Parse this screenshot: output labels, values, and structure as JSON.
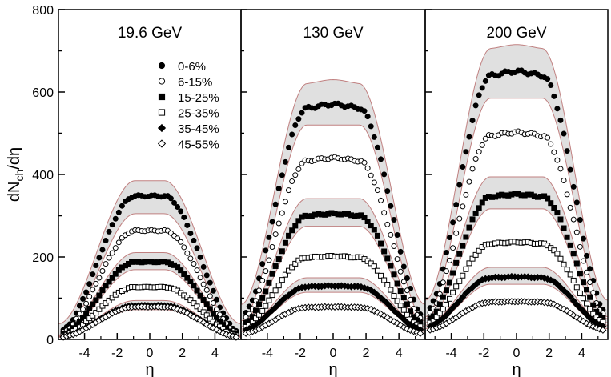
{
  "chart_data": [
    {
      "type": "scatter",
      "title": "19.6 GeV",
      "xlabel": "η",
      "ylabel": "dN_ch/dη",
      "xlim": [
        -5.6,
        5.6
      ],
      "ylim": [
        0,
        800
      ],
      "xticks": [
        -4,
        -2,
        0,
        2,
        4
      ],
      "yticks": [
        0,
        200,
        400,
        600,
        800
      ],
      "plateau": [
        348,
        264,
        188,
        127,
        82,
        79
      ],
      "edge": [
        18,
        14,
        10,
        8,
        6,
        5
      ],
      "band": {
        "upper": 385,
        "lower": 305
      },
      "legend": {
        "position": "top-right",
        "entries": [
          "0-6%",
          "6-15%",
          "15-25%",
          "25-35%",
          "35-45%",
          "45-55%"
        ]
      }
    },
    {
      "type": "scatter",
      "title": "130 GeV",
      "xlabel": "η",
      "xlim": [
        -5.6,
        5.6
      ],
      "ylim": [
        0,
        800
      ],
      "xticks": [
        -4,
        -2,
        0,
        2,
        4
      ],
      "plateau": [
        570,
        440,
        305,
        202,
        130,
        79
      ],
      "edge": [
        55,
        45,
        35,
        28,
        22,
        14
      ],
      "band": {
        "upper": 630,
        "lower": 520
      }
    },
    {
      "type": "scatter",
      "title": "200 GeV",
      "xlabel": "η",
      "xlim": [
        -5.6,
        5.6
      ],
      "ylim": [
        0,
        800
      ],
      "xticks": [
        -4,
        -2,
        0,
        2,
        4
      ],
      "plateau": [
        650,
        502,
        352,
        236,
        152,
        92
      ],
      "edge": [
        65,
        55,
        45,
        38,
        30,
        22
      ],
      "band": {
        "upper": 715,
        "lower": 585
      }
    }
  ],
  "series_markers": [
    "filled-circle",
    "open-circle",
    "filled-square",
    "open-square",
    "filled-diamond",
    "open-diamond"
  ],
  "colors": {
    "band": "#e0e0e0",
    "band_edge": "#c08080",
    "marker": "#000000"
  }
}
